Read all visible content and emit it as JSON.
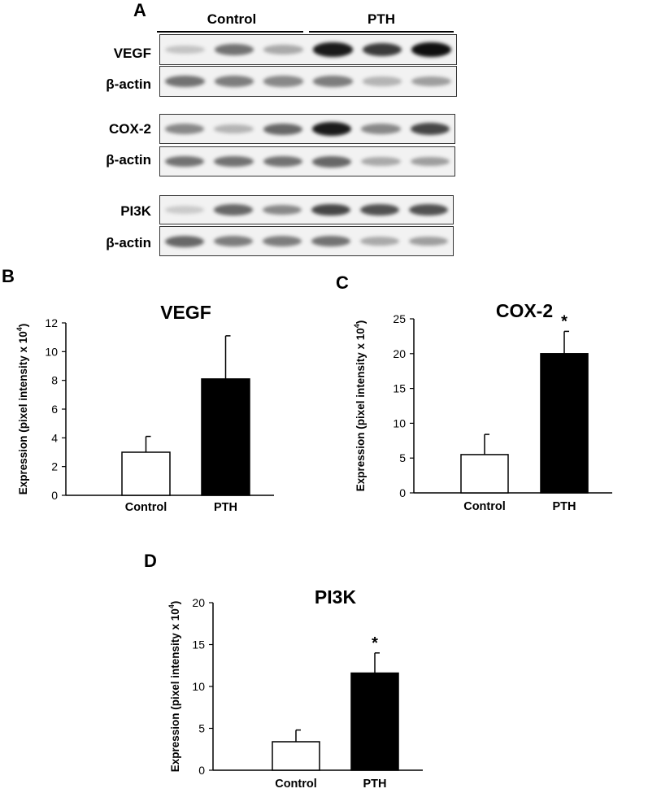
{
  "panel_a": {
    "letter": "A",
    "groups": [
      {
        "label": "Control"
      },
      {
        "label": "PTH"
      }
    ],
    "blots": [
      {
        "label": "VEGF",
        "bands": [
          0.18,
          0.55,
          0.3,
          0.95,
          0.8,
          1.0
        ]
      },
      {
        "label": "β-actin",
        "bands": [
          0.55,
          0.5,
          0.45,
          0.5,
          0.25,
          0.35
        ]
      },
      {
        "label": "COX-2",
        "bands": [
          0.45,
          0.25,
          0.6,
          0.95,
          0.45,
          0.75
        ]
      },
      {
        "label": "β-actin",
        "bands": [
          0.55,
          0.55,
          0.55,
          0.6,
          0.3,
          0.35
        ]
      },
      {
        "label": "PI3K",
        "bands": [
          0.15,
          0.6,
          0.45,
          0.75,
          0.7,
          0.7
        ]
      },
      {
        "label": "β-actin",
        "bands": [
          0.6,
          0.5,
          0.5,
          0.55,
          0.3,
          0.35
        ]
      }
    ]
  },
  "chart_data": [
    {
      "letter": "B",
      "type": "bar",
      "title": "VEGF",
      "categories": [
        "Control",
        "PTH"
      ],
      "values": [
        3.0,
        8.1
      ],
      "errors": [
        1.1,
        3.0
      ],
      "fills": [
        "#ffffff",
        "#000000"
      ],
      "significance": [
        "",
        ""
      ],
      "ylabel": "Expression (pixel intensity x 10",
      "ylabel_sup": "4",
      "ylabel_close": ")",
      "ylim": [
        0,
        12
      ],
      "yticks": [
        0,
        2,
        4,
        6,
        8,
        10,
        12
      ]
    },
    {
      "letter": "C",
      "type": "bar",
      "title": "COX-2",
      "categories": [
        "Control",
        "PTH"
      ],
      "values": [
        5.5,
        20.0
      ],
      "errors": [
        2.9,
        3.2
      ],
      "fills": [
        "#ffffff",
        "#000000"
      ],
      "significance": [
        "",
        "*"
      ],
      "ylabel": "Expression (pixel intensity x 10",
      "ylabel_sup": "4",
      "ylabel_close": ")",
      "ylim": [
        0,
        25
      ],
      "yticks": [
        0,
        5,
        10,
        15,
        20,
        25
      ]
    },
    {
      "letter": "D",
      "type": "bar",
      "title": "PI3K",
      "categories": [
        "Control",
        "PTH"
      ],
      "values": [
        3.4,
        11.6
      ],
      "errors": [
        1.4,
        2.4
      ],
      "fills": [
        "#ffffff",
        "#000000"
      ],
      "significance": [
        "",
        "*"
      ],
      "ylabel": "Expression (pixel intensity x 10",
      "ylabel_sup": "4",
      "ylabel_close": ")",
      "ylim": [
        0,
        20
      ],
      "yticks": [
        0,
        5,
        10,
        15,
        20
      ]
    }
  ]
}
